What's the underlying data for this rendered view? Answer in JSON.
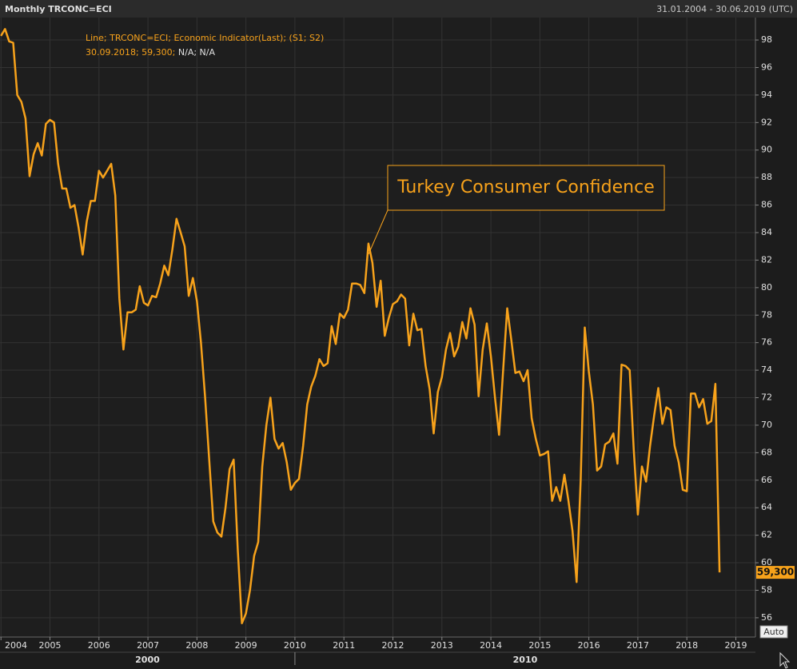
{
  "header": {
    "title": "Monthly TRCONC=ECI",
    "range": "31.01.2004 - 30.06.2019 (UTC)"
  },
  "chart_data": {
    "type": "line",
    "legend": [
      "Line; TRCONC=ECI; Economic Indicator(Last); (S1; S2)",
      "30.09.2018; 59,300;",
      "N/A; N/A"
    ],
    "annotation": "Turkey Consumer Confidence",
    "color": "#f7a21b",
    "x": [
      2004,
      2004.083,
      2004.167,
      2004.25,
      2004.333,
      2004.417,
      2004.5,
      2004.583,
      2004.667,
      2004.75,
      2004.833,
      2004.917,
      2005,
      2005.083,
      2005.167,
      2005.25,
      2005.333,
      2005.417,
      2005.5,
      2005.583,
      2005.667,
      2005.75,
      2005.833,
      2005.917,
      2006,
      2006.083,
      2006.167,
      2006.25,
      2006.333,
      2006.417,
      2006.5,
      2006.583,
      2006.667,
      2006.75,
      2006.833,
      2006.917,
      2007,
      2007.083,
      2007.167,
      2007.25,
      2007.333,
      2007.417,
      2007.5,
      2007.583,
      2007.667,
      2007.75,
      2007.833,
      2007.917,
      2008,
      2008.083,
      2008.167,
      2008.25,
      2008.333,
      2008.417,
      2008.5,
      2008.583,
      2008.667,
      2008.75,
      2008.833,
      2008.917,
      2009,
      2009.083,
      2009.167,
      2009.25,
      2009.333,
      2009.417,
      2009.5,
      2009.583,
      2009.667,
      2009.75,
      2009.833,
      2009.917,
      2010,
      2010.083,
      2010.167,
      2010.25,
      2010.333,
      2010.417,
      2010.5,
      2010.583,
      2010.667,
      2010.75,
      2010.833,
      2010.917,
      2011,
      2011.083,
      2011.167,
      2011.25,
      2011.333,
      2011.417,
      2011.5,
      2011.583,
      2011.667,
      2011.75,
      2011.833,
      2011.917,
      2012,
      2012.083,
      2012.167,
      2012.25,
      2012.333,
      2012.417,
      2012.5,
      2012.583,
      2012.667,
      2012.75,
      2012.833,
      2012.917,
      2013,
      2013.083,
      2013.167,
      2013.25,
      2013.333,
      2013.417,
      2013.5,
      2013.583,
      2013.667,
      2013.75,
      2013.833,
      2013.917,
      2014,
      2014.083,
      2014.167,
      2014.25,
      2014.333,
      2014.417,
      2014.5,
      2014.583,
      2014.667,
      2014.75,
      2014.833,
      2014.917,
      2015,
      2015.083,
      2015.167,
      2015.25,
      2015.333,
      2015.417,
      2015.5,
      2015.583,
      2015.667,
      2015.75,
      2015.833,
      2015.917,
      2016,
      2016.083,
      2016.167,
      2016.25,
      2016.333,
      2016.417,
      2016.5,
      2016.583,
      2016.667,
      2016.75,
      2016.833,
      2016.917,
      2017,
      2017.083,
      2017.167,
      2017.25,
      2017.333,
      2017.417,
      2017.5,
      2017.583,
      2017.667,
      2017.75,
      2017.833,
      2017.917,
      2018,
      2018.083,
      2018.167,
      2018.25,
      2018.333,
      2018.417,
      2018.5,
      2018.583,
      2018.667
    ],
    "values": [
      98.3,
      98.8,
      97.9,
      97.8,
      94,
      93.5,
      92.3,
      88.1,
      89.7,
      90.5,
      89.6,
      91.9,
      92.2,
      92,
      89,
      87.2,
      87.2,
      85.8,
      86,
      84.4,
      82.4,
      84.8,
      86.3,
      86.3,
      88.5,
      88,
      88.5,
      89,
      86.7,
      79.2,
      75.5,
      78.2,
      78.2,
      78.4,
      80.1,
      78.9,
      78.7,
      79.4,
      79.3,
      80.3,
      81.6,
      80.9,
      82.8,
      85,
      84,
      83,
      79.4,
      80.7,
      79,
      76,
      72,
      67.5,
      63,
      62.2,
      61.9,
      64,
      66.8,
      67.5,
      61,
      55.6,
      56.3,
      58,
      60.5,
      61.5,
      67,
      70,
      72,
      69,
      68.3,
      68.7,
      67.3,
      65.3,
      65.8,
      66.1,
      68.5,
      71.5,
      72.8,
      73.6,
      74.8,
      74.3,
      74.5,
      77.2,
      75.9,
      78.1,
      77.8,
      78.4,
      80.3,
      80.3,
      80.2,
      79.6,
      83.2,
      81.8,
      78.6,
      80.5,
      76.5,
      77.8,
      78.8,
      79,
      79.5,
      79.2,
      75.8,
      78.1,
      76.9,
      77,
      74.3,
      72.6,
      69.4,
      72.4,
      73.5,
      75.5,
      76.7,
      75,
      75.7,
      77.5,
      76.3,
      78.5,
      77.3,
      72.1,
      75.5,
      77.4,
      75,
      72,
      69.3,
      74,
      78.5,
      76.2,
      73.8,
      73.9,
      73.2,
      74,
      70.5,
      69,
      67.8,
      67.9,
      68.1,
      64.5,
      65.5,
      64.5,
      66.4,
      64.5,
      62.3,
      58.6,
      66,
      77.1,
      73.9,
      71.5,
      66.7,
      67,
      68.6,
      68.8,
      69.4,
      67.2,
      74.4,
      74.3,
      74,
      68.2,
      63.5,
      67,
      65.9,
      68.5,
      70.7,
      72.7,
      70.1,
      71.3,
      71.1,
      68.5,
      67.3,
      65.3,
      65.2,
      72.3,
      72.3,
      71.3,
      71.9,
      70.1,
      70.3,
      73,
      59.3
    ],
    "last_label": "59,300",
    "xlim": [
      2003.98,
      2019.4
    ],
    "xticks": [
      2004,
      2005,
      2006,
      2007,
      2008,
      2009,
      2010,
      2011,
      2012,
      2013,
      2014,
      2015,
      2016,
      2017,
      2018,
      2019
    ],
    "x2_labels": [
      "2000",
      "2010"
    ],
    "ylim": [
      54.6,
      99.63
    ],
    "yticks": [
      56,
      58,
      60,
      62,
      64,
      66,
      68,
      70,
      72,
      74,
      76,
      78,
      80,
      82,
      84,
      86,
      88,
      90,
      92,
      94,
      96,
      98
    ],
    "grid": true
  },
  "controls": {
    "auto": "Auto"
  }
}
